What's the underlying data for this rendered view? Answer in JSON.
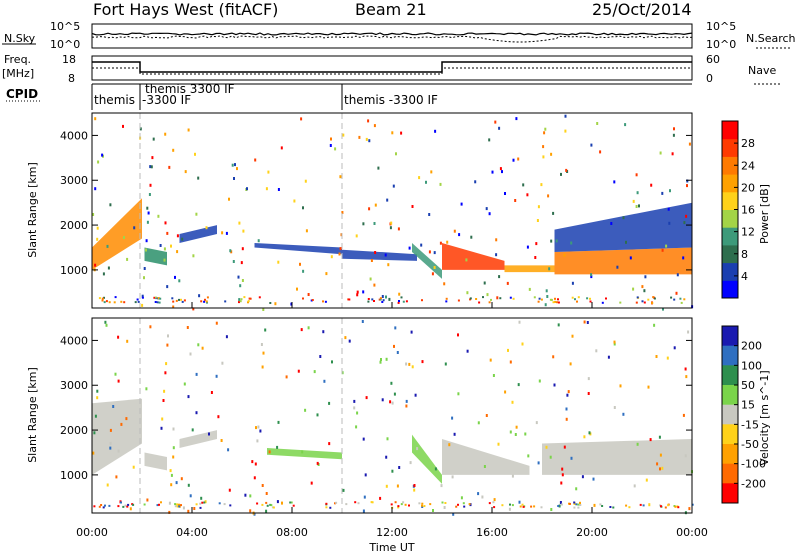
{
  "header": {
    "title": "Fort Hays West (fitACF)",
    "beam": "Beam 21",
    "date": "25/Oct/2014"
  },
  "noise_panel": {
    "left_label": "N.Sky",
    "right_label": "N.Search",
    "left_ticks": [
      "10^5",
      "10^0"
    ],
    "right_ticks": [
      "10^5",
      "10^0"
    ]
  },
  "freq_panel": {
    "left_label_1": "Freq.",
    "left_label_2": "[MHz]",
    "right_label": "Nave",
    "left_ticks": [
      "18",
      "8"
    ],
    "right_ticks": [
      "60",
      "0"
    ]
  },
  "cpid": {
    "label": "CPID",
    "segments": [
      {
        "start": 0,
        "end": 2,
        "text": "themis"
      },
      {
        "start": 2,
        "end": 10,
        "text": "themis 3300 IF",
        "text2": "-3300 IF"
      },
      {
        "start": 10,
        "end": 24,
        "text": "themis -3300 IF"
      }
    ]
  },
  "chart_data": [
    {
      "type": "heatmap",
      "name": "Power",
      "ylabel": "Slant Range [km]",
      "yticks": [
        1000,
        2000,
        3000,
        4000
      ],
      "ylim": [
        150,
        4500
      ],
      "xlim": [
        0,
        24
      ],
      "colorbar": {
        "label": "Power [dB]",
        "ticks": [
          "4",
          "8",
          "12",
          "16",
          "20",
          "24",
          "28"
        ],
        "colors": [
          "#0000ff",
          "#1a3fb0",
          "#2e6e4e",
          "#3d9a7a",
          "#a3d447",
          "#ffd21a",
          "#ffa100",
          "#ff7a00",
          "#ff3a00",
          "#ff0000"
        ]
      },
      "bands": [
        {
          "t0": 0.0,
          "t1": 2.0,
          "lo0": 1000,
          "hi0": 1500,
          "lo1": 1700,
          "hi1": 2600,
          "color": "#ff8c00"
        },
        {
          "t0": 2.1,
          "t1": 3.0,
          "lo0": 1200,
          "hi0": 1500,
          "lo1": 1100,
          "hi1": 1400,
          "color": "#2a8f6a"
        },
        {
          "t0": 3.5,
          "t1": 5.0,
          "lo0": 1600,
          "hi0": 1800,
          "lo1": 1800,
          "hi1": 2000,
          "color": "#1a3fb0"
        },
        {
          "t0": 6.5,
          "t1": 10.0,
          "lo0": 1500,
          "hi0": 1600,
          "lo1": 1350,
          "hi1": 1500,
          "color": "#1a3fb0"
        },
        {
          "t0": 10.0,
          "t1": 13.0,
          "lo0": 1250,
          "hi0": 1450,
          "lo1": 1200,
          "hi1": 1350,
          "color": "#1a3fb0"
        },
        {
          "t0": 12.8,
          "t1": 14.0,
          "lo0": 1400,
          "hi0": 1600,
          "lo1": 800,
          "hi1": 1000,
          "color": "#3d9a7a"
        },
        {
          "t0": 14.0,
          "t1": 16.5,
          "lo0": 1000,
          "hi0": 1600,
          "lo1": 1000,
          "hi1": 1200,
          "color": "#ff3a00"
        },
        {
          "t0": 16.5,
          "t1": 18.5,
          "lo0": 950,
          "hi0": 1100,
          "lo1": 950,
          "hi1": 1100,
          "color": "#ffa100"
        },
        {
          "t0": 18.5,
          "t1": 24.0,
          "lo0": 900,
          "hi0": 1400,
          "lo1": 900,
          "hi1": 1500,
          "color": "#ff7a00"
        },
        {
          "t0": 18.5,
          "t1": 24.0,
          "lo0": 1400,
          "hi0": 1900,
          "lo1": 1500,
          "hi1": 2500,
          "color": "#1a3fb0"
        }
      ]
    },
    {
      "type": "heatmap",
      "name": "Velocity",
      "ylabel": "Slant Range [km]",
      "yticks": [
        1000,
        2000,
        3000,
        4000
      ],
      "ylim": [
        150,
        4500
      ],
      "xlim": [
        0,
        24
      ],
      "xlabel": "Time UT",
      "xticks": [
        "00:00",
        "04:00",
        "08:00",
        "12:00",
        "16:00",
        "20:00",
        "00:00"
      ],
      "colorbar": {
        "label": "Velocity [m s^-1]",
        "ticks": [
          "200",
          "100",
          "50",
          "15",
          "-15",
          "-50",
          "-100",
          "-200"
        ],
        "colors": [
          "#1a1ab0",
          "#2f6fc0",
          "#2e8f4e",
          "#7ad44a",
          "#c8c8c0",
          "#ffd21a",
          "#ffa100",
          "#ff6a00",
          "#ff0000"
        ]
      },
      "bands": [
        {
          "t0": 0.0,
          "t1": 2.0,
          "lo0": 1000,
          "hi0": 2600,
          "lo1": 1700,
          "hi1": 2700,
          "color": "#c8c8c0"
        },
        {
          "t0": 2.1,
          "t1": 3.0,
          "lo0": 1200,
          "hi0": 1500,
          "lo1": 1100,
          "hi1": 1400,
          "color": "#c8c8c0"
        },
        {
          "t0": 3.5,
          "t1": 5.0,
          "lo0": 1600,
          "hi0": 1800,
          "lo1": 1800,
          "hi1": 2000,
          "color": "#c8c8c0"
        },
        {
          "t0": 7.0,
          "t1": 10.0,
          "lo0": 1450,
          "hi0": 1600,
          "lo1": 1350,
          "hi1": 1500,
          "color": "#7ad44a"
        },
        {
          "t0": 12.8,
          "t1": 14.0,
          "lo0": 1500,
          "hi0": 1900,
          "lo1": 800,
          "hi1": 1000,
          "color": "#7ad44a"
        },
        {
          "t0": 14.0,
          "t1": 17.5,
          "lo0": 1000,
          "hi0": 1800,
          "lo1": 1000,
          "hi1": 1200,
          "color": "#c8c8c0"
        },
        {
          "t0": 18.0,
          "t1": 24.0,
          "lo0": 1000,
          "hi0": 1700,
          "lo1": 1000,
          "hi1": 1800,
          "color": "#c8c8c0"
        }
      ]
    }
  ]
}
